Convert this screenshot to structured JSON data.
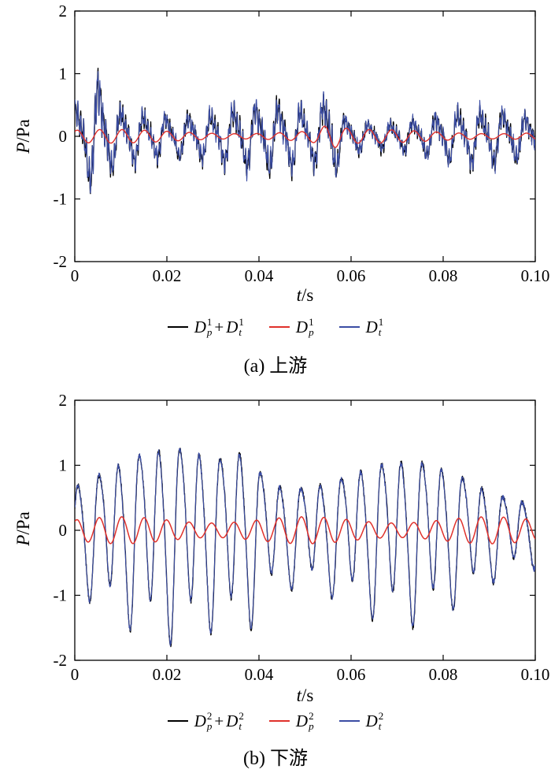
{
  "chart_data": [
    {
      "type": "line",
      "title": "",
      "caption": "(a) 上游",
      "xlabel": "t/s",
      "ylabel": "P/Pa",
      "xlabel_var": "t",
      "xlabel_unit": "/s",
      "ylabel_var": "P",
      "ylabel_unit": "/Pa",
      "xlim": [
        0,
        0.1
      ],
      "ylim": [
        -2,
        2
      ],
      "xticks": [
        0,
        0.02,
        0.04,
        0.06,
        0.08,
        0.1
      ],
      "xtick_labels": [
        "0",
        "0.02",
        "0.04",
        "0.06",
        "0.08",
        "0.10"
      ],
      "yticks": [
        -2,
        -1,
        0,
        1,
        2
      ],
      "ytick_labels": [
        "-2",
        "-1",
        "0",
        "1",
        "2"
      ],
      "grid": false,
      "legend_position": "below",
      "legend_symbol": "D",
      "series": [
        {
          "name": "Dp1+Dt1",
          "color": "#000000",
          "line_width": 1.3,
          "z": 1,
          "legend_terms": [
            {
              "sub": "p",
              "sup": "1"
            },
            {
              "sub": "t",
              "sup": "1"
            }
          ],
          "model": {
            "samples": 2000,
            "components": [
              {
                "f": 205,
                "a": 0.3,
                "p": 0.8
              },
              {
                "f": 410,
                "a": 0.09,
                "p": 2.1
              },
              {
                "f": 1650,
                "a": 0.11,
                "p": 0.3
              },
              {
                "f": 3150,
                "a": 0.06,
                "p": 1.7
              }
            ],
            "am_base": 1.0,
            "am": [
              {
                "f": 23,
                "a": 0.32,
                "p": 1.5
              },
              {
                "f": 9,
                "a": 0.18,
                "p": 0.2
              }
            ],
            "noise": {
              "a": 0.05,
              "seed": 11
            },
            "bumps": [
              {
                "t": 0.005,
                "w": 0.002,
                "g": 0.85
              },
              {
                "t": 0.0555,
                "w": 0.002,
                "g": 1.0
              }
            ]
          }
        },
        {
          "name": "Dp1",
          "color": "#e0312b",
          "line_width": 1.4,
          "z": 3,
          "legend_terms": [
            {
              "sub": "p",
              "sup": "1"
            }
          ],
          "model": {
            "samples": 900,
            "components": [
              {
                "f": 205,
                "a": 0.075,
                "p": 0.9
              }
            ],
            "am_base": 1.0,
            "am": [
              {
                "f": 18,
                "a": 0.45,
                "p": 0.7
              }
            ],
            "noise": {
              "a": 0,
              "seed": 1
            },
            "bumps": [
              {
                "t": 0.0555,
                "w": 0.003,
                "g": 0.9
              }
            ]
          }
        },
        {
          "name": "Dt1",
          "color": "#3b4da4",
          "line_width": 1.1,
          "z": 2,
          "legend_terms": [
            {
              "sub": "t",
              "sup": "1"
            }
          ],
          "model": {
            "samples": 2000,
            "components": [
              {
                "f": 205,
                "a": 0.29,
                "p": 0.85
              },
              {
                "f": 410,
                "a": 0.09,
                "p": 2.0
              },
              {
                "f": 1650,
                "a": 0.11,
                "p": 0.5
              },
              {
                "f": 3150,
                "a": 0.06,
                "p": 1.2
              }
            ],
            "am_base": 1.0,
            "am": [
              {
                "f": 23,
                "a": 0.32,
                "p": 1.55
              },
              {
                "f": 9,
                "a": 0.18,
                "p": 0.25
              }
            ],
            "noise": {
              "a": 0.05,
              "seed": 29
            },
            "bumps": [
              {
                "t": 0.005,
                "w": 0.002,
                "g": 0.85
              },
              {
                "t": 0.0555,
                "w": 0.002,
                "g": 1.0
              }
            ]
          }
        }
      ]
    },
    {
      "type": "line",
      "title": "",
      "caption": "(b) 下游",
      "xlabel": "t/s",
      "ylabel": "P/Pa",
      "xlabel_var": "t",
      "xlabel_unit": "/s",
      "ylabel_var": "P",
      "ylabel_unit": "/Pa",
      "xlim": [
        0,
        0.1
      ],
      "ylim": [
        -2,
        2
      ],
      "xticks": [
        0,
        0.02,
        0.04,
        0.06,
        0.08,
        0.1
      ],
      "xtick_labels": [
        "0",
        "0.02",
        "0.04",
        "0.06",
        "0.08",
        "0.10"
      ],
      "yticks": [
        -2,
        -1,
        0,
        1,
        2
      ],
      "ytick_labels": [
        "-2",
        "-1",
        "0",
        "1",
        "2"
      ],
      "grid": false,
      "legend_position": "below",
      "legend_symbol": "D",
      "series": [
        {
          "name": "Dp2+Dt2",
          "color": "#000000",
          "line_width": 1.3,
          "z": 1,
          "legend_terms": [
            {
              "sub": "p",
              "sup": "2"
            },
            {
              "sub": "t",
              "sup": "2"
            }
          ],
          "model": {
            "samples": 2000,
            "components": [
              {
                "f": 228,
                "a": 0.88,
                "p": 0.2
              },
              {
                "f": 114,
                "a": 0.22,
                "p": 2.6
              },
              {
                "f": 456,
                "a": 0.12,
                "p": 1.1
              }
            ],
            "am_base": 1.0,
            "am": [
              {
                "f": 19,
                "a": 0.33,
                "p": -0.9
              },
              {
                "f": 7,
                "a": 0.16,
                "p": 0.4
              }
            ],
            "noise": {
              "a": 0.04,
              "seed": 5
            },
            "bumps": [
              {
                "t": 0.037,
                "w": 0.004,
                "g": 0.35
              }
            ]
          }
        },
        {
          "name": "Dp2",
          "color": "#e0312b",
          "line_width": 1.5,
          "z": 3,
          "legend_terms": [
            {
              "sub": "p",
              "sup": "2"
            }
          ],
          "model": {
            "samples": 900,
            "components": [
              {
                "f": 205,
                "a": 0.16,
                "p": 1.0
              }
            ],
            "am_base": 1.0,
            "am": [
              {
                "f": 25,
                "a": 0.3,
                "p": 0
              }
            ],
            "noise": {
              "a": 0,
              "seed": 2
            },
            "bumps": []
          }
        },
        {
          "name": "Dt2",
          "color": "#3b4da4",
          "line_width": 1.1,
          "z": 2,
          "legend_terms": [
            {
              "sub": "t",
              "sup": "2"
            }
          ],
          "model": {
            "samples": 2000,
            "components": [
              {
                "f": 228,
                "a": 0.87,
                "p": 0.23
              },
              {
                "f": 114,
                "a": 0.22,
                "p": 2.63
              },
              {
                "f": 456,
                "a": 0.12,
                "p": 1.13
              }
            ],
            "am_base": 1.0,
            "am": [
              {
                "f": 19,
                "a": 0.33,
                "p": -0.88
              },
              {
                "f": 7,
                "a": 0.16,
                "p": 0.42
              }
            ],
            "noise": {
              "a": 0.04,
              "seed": 17
            },
            "bumps": [
              {
                "t": 0.037,
                "w": 0.004,
                "g": 0.35
              }
            ]
          }
        }
      ]
    }
  ]
}
